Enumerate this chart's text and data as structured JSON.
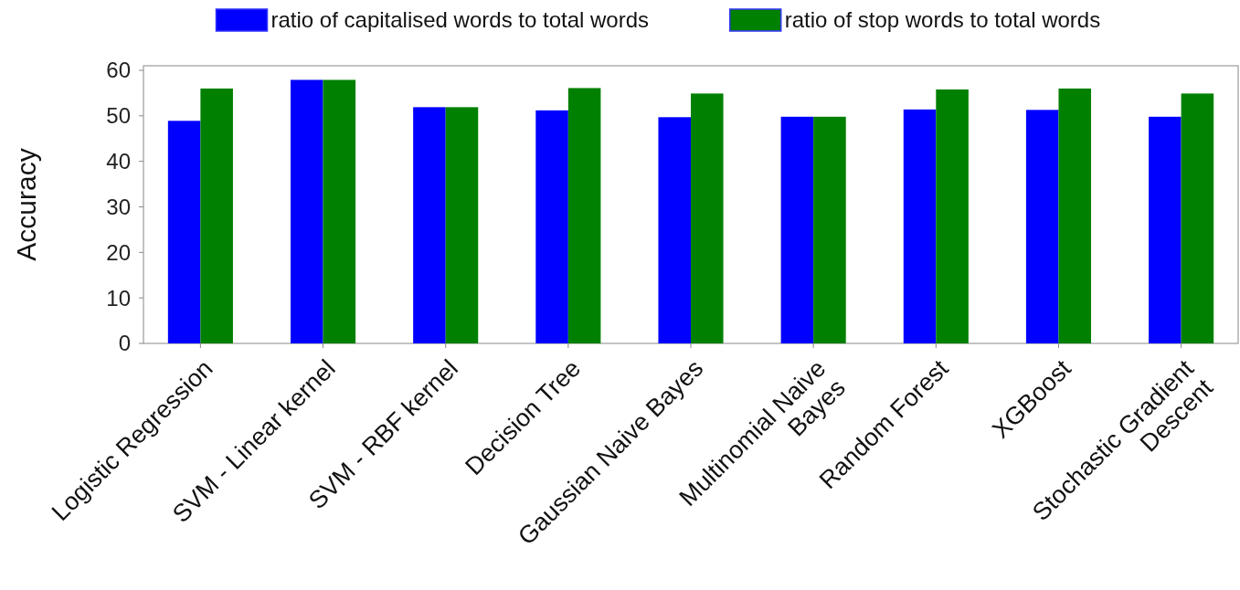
{
  "chart_data": {
    "type": "bar",
    "ylabel": "Accuracy",
    "categories": [
      "Logistic Regression",
      "SVM - Linear kernel",
      "SVM - RBF kernel",
      "Decision Tree",
      "Gaussian Naive Bayes",
      "Multinomial Naive Bayes",
      "Random Forest",
      "XGBoost",
      "Stochastic Gradient Descent"
    ],
    "series": [
      {
        "name": "ratio of capitalised words to total words",
        "color": "#0000ff",
        "values": [
          48.9,
          57.9,
          51.9,
          51.2,
          49.7,
          49.8,
          51.4,
          51.3,
          49.8
        ]
      },
      {
        "name": "ratio of stop words to total words",
        "color": "#008000",
        "values": [
          56.0,
          57.9,
          51.9,
          56.1,
          54.9,
          49.8,
          55.8,
          56.0,
          54.9
        ]
      }
    ],
    "ylim": [
      0,
      61
    ],
    "yticks": [
      0,
      10,
      20,
      30,
      40,
      50,
      60
    ],
    "grid": false,
    "legend": "top"
  }
}
